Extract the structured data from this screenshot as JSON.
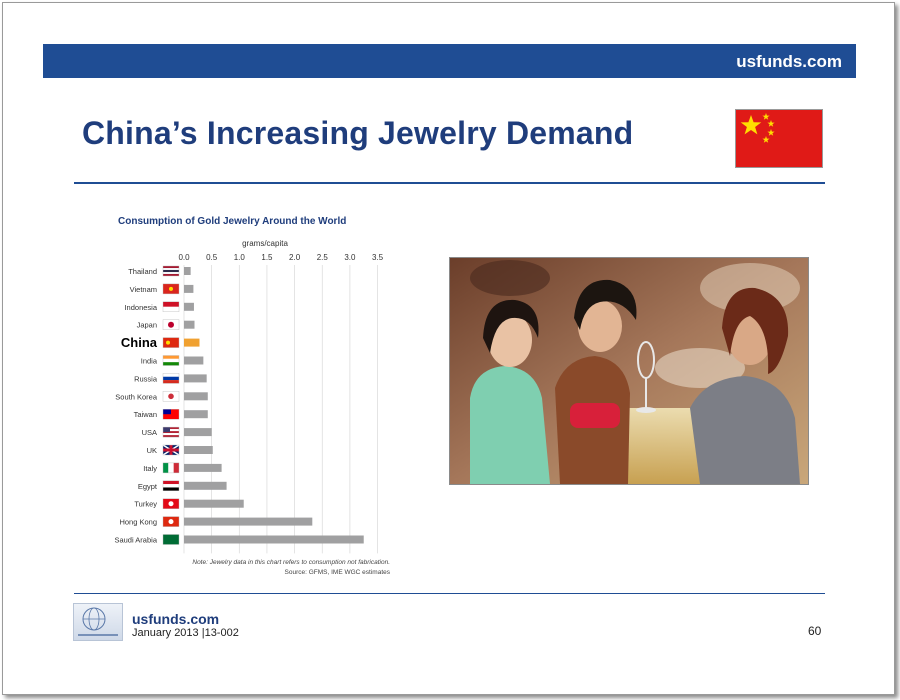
{
  "header": {
    "site": "usfunds.com"
  },
  "slide": {
    "title": "China’s Increasing Jewelry Demand"
  },
  "footer": {
    "site": "usfunds.com",
    "date": "January 2013 |13-002",
    "page": "60"
  },
  "images": {
    "flag": "china-flag",
    "photo": "shoppers-at-jewelry-counter-photo",
    "logo": "us-global-investors-logo"
  },
  "chart_data": {
    "type": "bar",
    "orientation": "horizontal",
    "title": "Consumption of Gold Jewelry Around the World",
    "xlabel": "grams/capita",
    "xlim": [
      0,
      3.5
    ],
    "ticks": [
      "0.0",
      "0.5",
      "1.0",
      "1.5",
      "2.0",
      "2.5",
      "3.0",
      "3.5"
    ],
    "categories": [
      "Thailand",
      "Vietnam",
      "Indonesia",
      "Japan",
      "China",
      "India",
      "Russia",
      "South Korea",
      "Taiwan",
      "USA",
      "UK",
      "Italy",
      "Egypt",
      "Turkey",
      "Hong Kong",
      "Saudi Arabia"
    ],
    "values": [
      0.12,
      0.17,
      0.18,
      0.19,
      0.28,
      0.35,
      0.41,
      0.43,
      0.43,
      0.5,
      0.52,
      0.68,
      0.77,
      1.08,
      2.32,
      3.25
    ],
    "highlight": "China",
    "highlight_color": "#f0a131",
    "bar_color": "#a0a0a1",
    "note": "Note: Jewelry data in this chart refers to consumption not fabrication.",
    "source": "Source: GFMS, IME WGC estimates",
    "grid": true
  }
}
